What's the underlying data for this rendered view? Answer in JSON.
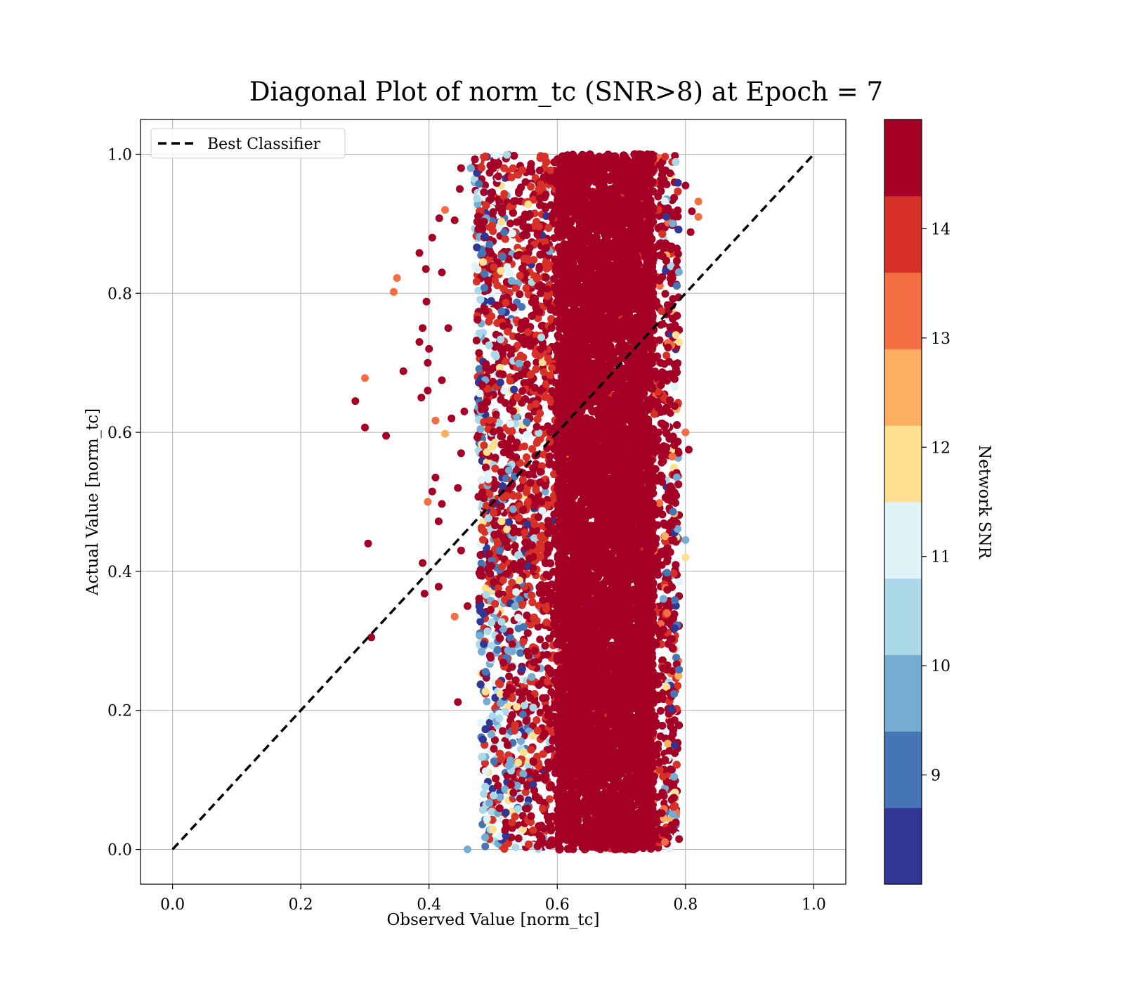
{
  "chart_data": {
    "type": "scatter",
    "title": "Diagonal Plot of norm_tc (SNR>8) at Epoch = 7",
    "xlabel": "Observed Value [norm_tc]",
    "ylabel": "Actual Value [norm_tc]",
    "xlim": [
      -0.05,
      1.05
    ],
    "ylim": [
      -0.05,
      1.05
    ],
    "x_ticks": [
      "0.0",
      "0.2",
      "0.4",
      "0.6",
      "0.8",
      "1.0"
    ],
    "y_ticks": [
      "0.0",
      "0.2",
      "0.4",
      "0.6",
      "0.8",
      "1.0"
    ],
    "grid": true,
    "legend": {
      "placement": "top-left",
      "entries": [
        {
          "label": "Best Classifier",
          "style": "dashed",
          "color": "#000000"
        }
      ]
    },
    "reference_line": {
      "name": "Best Classifier",
      "x": [
        0,
        1
      ],
      "y": [
        0,
        1
      ],
      "style": "dashed",
      "color": "#000000"
    },
    "colorbar": {
      "label": "Network SNR",
      "range": [
        8,
        15
      ],
      "ticks": [
        "9",
        "10",
        "11",
        "12",
        "13",
        "14"
      ],
      "tick_values": [
        9,
        10,
        11,
        12,
        13,
        14
      ],
      "colors": [
        "#313695",
        "#4575b4",
        "#74add1",
        "#abd9e9",
        "#e0f3f8",
        "#fee090",
        "#fdae61",
        "#f46d43",
        "#d73027",
        "#a50026"
      ]
    },
    "points": [
      [
        0.285,
        0.645,
        15
      ],
      [
        0.3,
        0.607,
        15
      ],
      [
        0.305,
        0.44,
        15
      ],
      [
        0.31,
        0.305,
        15
      ],
      [
        0.333,
        0.595,
        15
      ],
      [
        0.3,
        0.678,
        13.5
      ],
      [
        0.345,
        0.802,
        13.5
      ],
      [
        0.35,
        0.822,
        13.5
      ],
      [
        0.36,
        0.688,
        15
      ],
      [
        0.385,
        0.858,
        15
      ],
      [
        0.385,
        0.73,
        15
      ],
      [
        0.388,
        0.65,
        15
      ],
      [
        0.39,
        0.75,
        15
      ],
      [
        0.39,
        0.412,
        15
      ],
      [
        0.393,
        0.368,
        15
      ],
      [
        0.395,
        0.835,
        15
      ],
      [
        0.396,
        0.788,
        15
      ],
      [
        0.398,
        0.7,
        15
      ],
      [
        0.398,
        0.66,
        15
      ],
      [
        0.398,
        0.5,
        13.5
      ],
      [
        0.4,
        0.72,
        15
      ],
      [
        0.405,
        0.515,
        15
      ],
      [
        0.405,
        0.88,
        15
      ],
      [
        0.41,
        0.535,
        15
      ],
      [
        0.41,
        0.617,
        13.5
      ],
      [
        0.415,
        0.472,
        15
      ],
      [
        0.415,
        0.378,
        15
      ],
      [
        0.42,
        0.83,
        15
      ],
      [
        0.42,
        0.675,
        15
      ],
      [
        0.42,
        0.497,
        15
      ],
      [
        0.425,
        0.598,
        12.5
      ],
      [
        0.43,
        0.75,
        15
      ],
      [
        0.435,
        0.62,
        15
      ],
      [
        0.44,
        0.335,
        13.5
      ],
      [
        0.445,
        0.52,
        15
      ],
      [
        0.445,
        0.212,
        15
      ],
      [
        0.45,
        0.57,
        15
      ],
      [
        0.45,
        0.43,
        15
      ],
      [
        0.455,
        0.63,
        15
      ],
      [
        0.46,
        0.35,
        15
      ],
      [
        0.416,
        0.908,
        15
      ],
      [
        0.425,
        0.92,
        13.5
      ],
      [
        0.44,
        0.905,
        15
      ],
      [
        0.448,
        0.95,
        15
      ],
      [
        0.45,
        0.98,
        15
      ],
      [
        0.808,
        0.888,
        15
      ],
      [
        0.81,
        0.918,
        15
      ],
      [
        0.82,
        0.932,
        13.5
      ],
      [
        0.82,
        0.91,
        13.5
      ],
      [
        0.8,
        0.955,
        15
      ],
      [
        0.8,
        0.6,
        13.5
      ],
      [
        0.805,
        0.575,
        15
      ],
      [
        0.8,
        0.445,
        10
      ],
      [
        0.8,
        0.42,
        12
      ],
      [
        0.79,
        0.015,
        15
      ],
      [
        0.785,
        0.74,
        12
      ],
      [
        0.79,
        0.73,
        12
      ],
      [
        0.79,
        0.385,
        11
      ],
      [
        0.46,
        0.0,
        10
      ],
      [
        0.465,
        0.98,
        9.5
      ]
    ]
  }
}
